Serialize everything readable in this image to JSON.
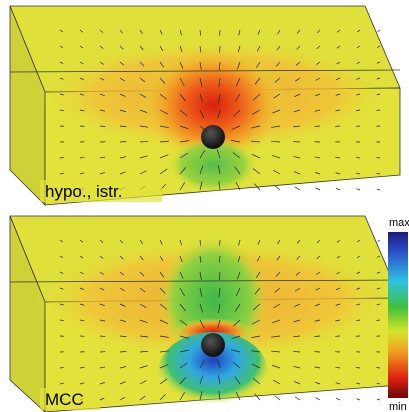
{
  "panels": [
    {
      "label": "hypo., istr."
    },
    {
      "label": "MCC"
    }
  ],
  "colorbar": {
    "max": "max",
    "min": "min"
  }
}
